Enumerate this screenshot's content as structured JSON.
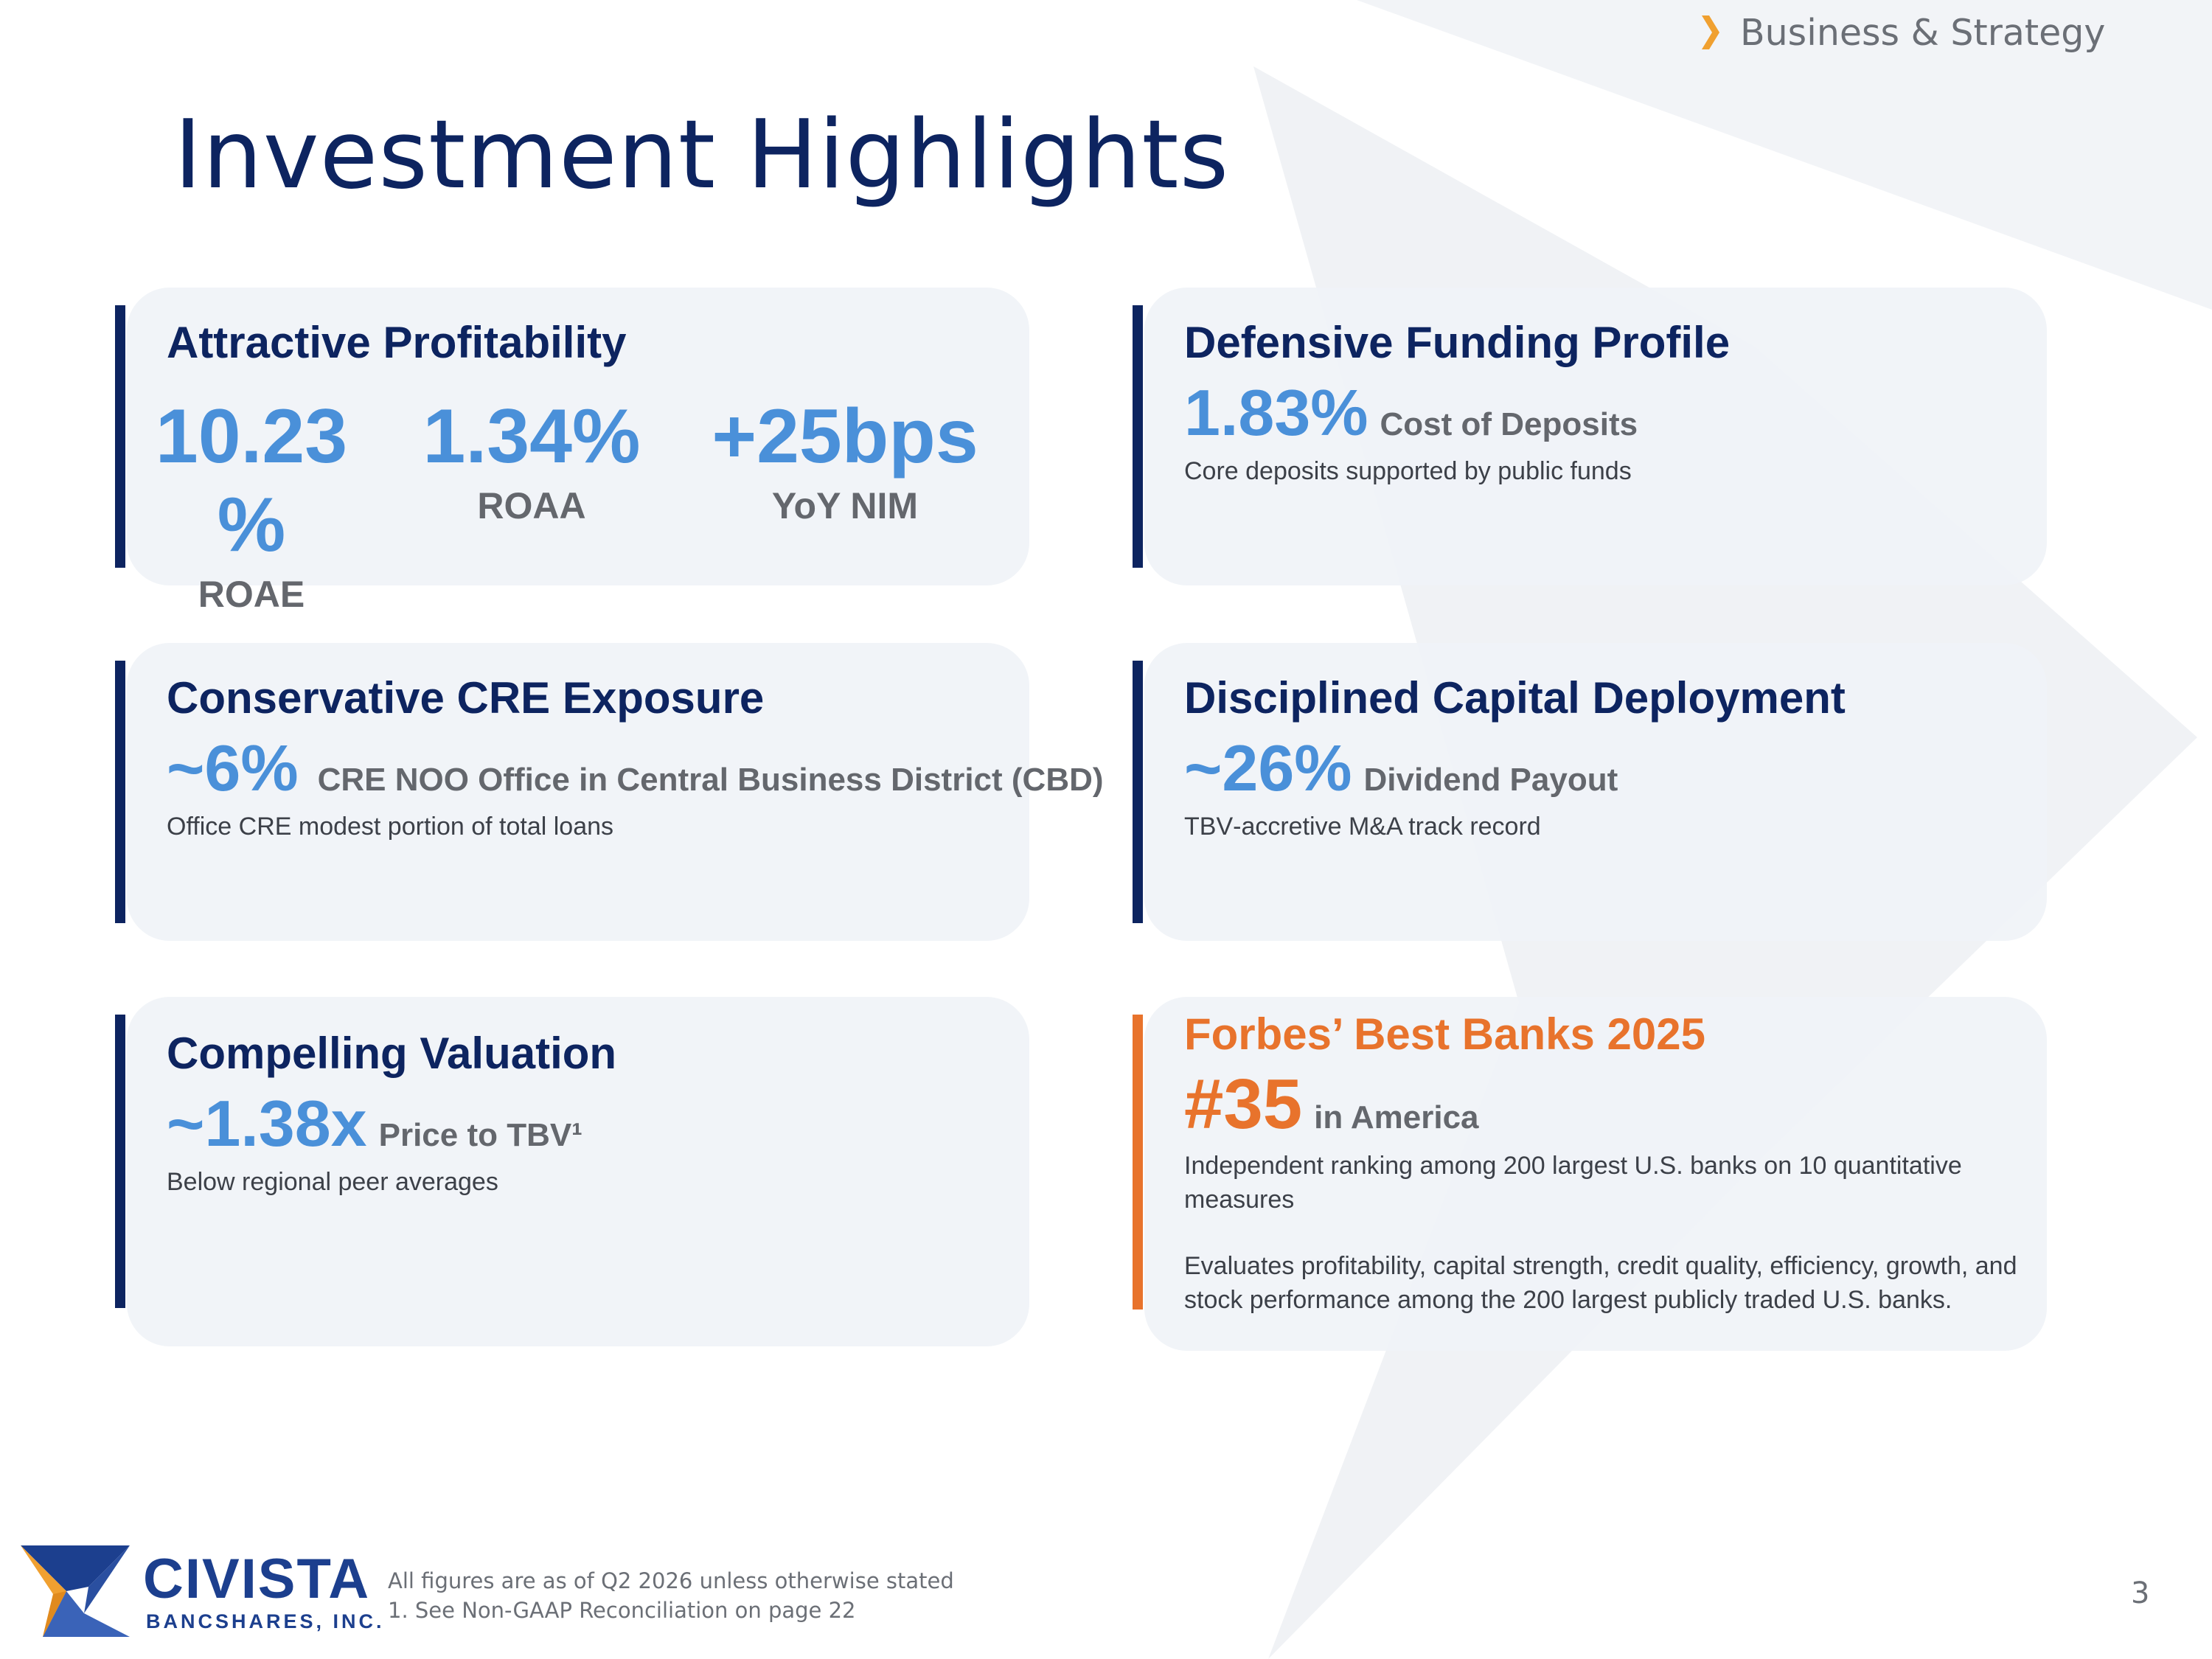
{
  "header": {
    "section_tag": "Business & Strategy",
    "title": "Investment Highlights"
  },
  "colors": {
    "navy": "#0d2460",
    "metric_blue": "#4a90d9",
    "orange": "#e8732c",
    "card_bg": "#f0f3f7"
  },
  "cards": {
    "profitability": {
      "heading": "Attractive Profitability",
      "metrics": [
        {
          "value": "10.23",
          "value_wrap": "%",
          "label": "ROAE"
        },
        {
          "value": "1.34%",
          "label": "ROAA"
        },
        {
          "value": "+25bps",
          "label": "YoY NIM"
        }
      ]
    },
    "funding": {
      "heading": "Defensive Funding Profile",
      "value": "1.83%",
      "label": "Cost of Deposits",
      "sub": "Core deposits supported by public funds"
    },
    "cre": {
      "heading": "Conservative CRE Exposure",
      "value": "~6%",
      "label": "CRE NOO Office in Central Business District (CBD)",
      "sub": "Office CRE modest portion of total loans"
    },
    "capital": {
      "heading": "Disciplined Capital Deployment",
      "value": "~26%",
      "label": "Dividend Payout",
      "sub": "TBV‑accretive M&A track record"
    },
    "valuation": {
      "heading": "Compelling Valuation",
      "value": "~1.38x",
      "label": "Price to TBV¹",
      "sub": "Below regional peer averages"
    },
    "forbes": {
      "heading": "Forbes’ Best Banks 2025",
      "value": "#35",
      "label": "in America",
      "sub1": "Independent ranking among 200 largest U.S. banks on 10 quantitative measures",
      "sub2": "Evaluates profitability, capital strength, credit quality, efficiency, growth, and stock performance among the 200 largest publicly traded U.S. banks."
    }
  },
  "footer": {
    "logo_name": "CIVISTA",
    "logo_sub": "BANCSHARES, INC.",
    "note1": "All figures are as of Q2 2026 unless otherwise stated",
    "note2": "1. See Non-GAAP Reconciliation on page 22",
    "page_number": "3"
  }
}
